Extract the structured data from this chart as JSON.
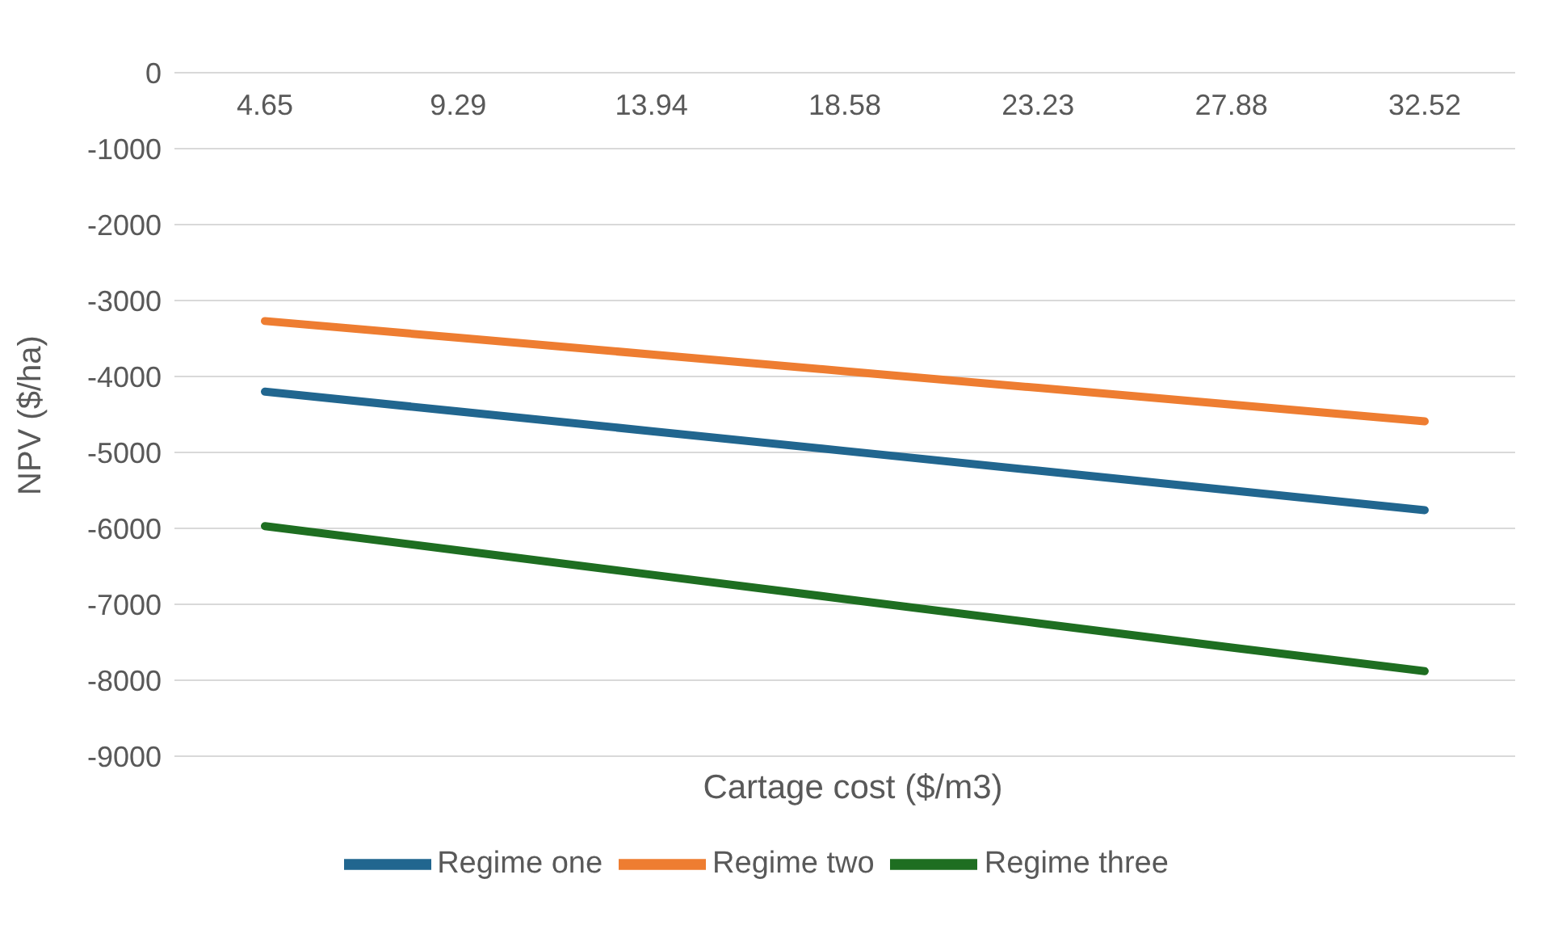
{
  "chart_data": {
    "type": "line",
    "xlabel": "Cartage cost ($/m3)",
    "ylabel": "NPV ($/ha)",
    "categories": [
      "4.65",
      "9.29",
      "13.94",
      "18.58",
      "23.23",
      "27.88",
      "32.52"
    ],
    "series": [
      {
        "name": "Regime one",
        "color": "#21668f",
        "values": [
          -4200,
          -4460,
          -4720,
          -4980,
          -5240,
          -5500,
          -5760
        ]
      },
      {
        "name": "Regime two",
        "color": "#ee7d31",
        "values": [
          -3270,
          -3490,
          -3710,
          -3930,
          -4150,
          -4370,
          -4590
        ]
      },
      {
        "name": "Regime three",
        "color": "#1e6e21",
        "values": [
          -5970,
          -6290,
          -6610,
          -6930,
          -7250,
          -7570,
          -7880
        ]
      }
    ],
    "ylim": [
      -9000,
      0
    ],
    "yticks": [
      0,
      -1000,
      -2000,
      -3000,
      -4000,
      -5000,
      -6000,
      -7000,
      -8000,
      -9000
    ],
    "grid": "y",
    "legend": "bottom",
    "marker": "none",
    "line_style": "solid"
  }
}
